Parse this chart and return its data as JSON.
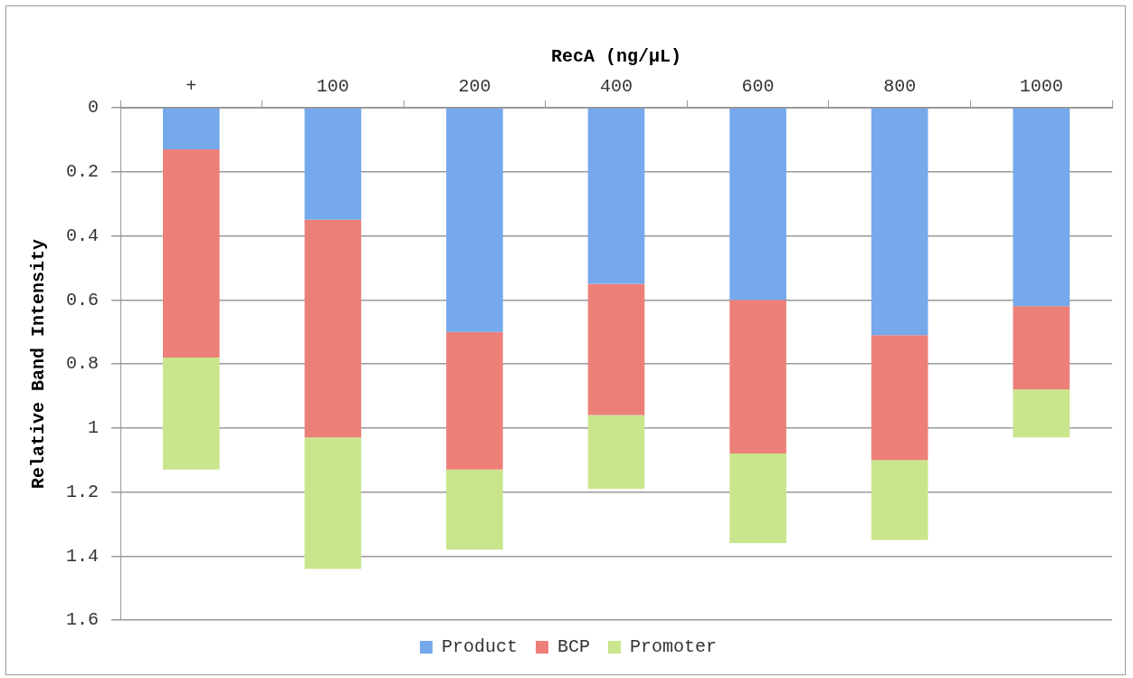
{
  "chart_data": {
    "type": "bar",
    "stacked": true,
    "xlabel": "RecA (ng/µL)",
    "ylabel": "Relative Band Intensity",
    "categories": [
      "+",
      "100",
      "200",
      "400",
      "600",
      "800",
      "1000"
    ],
    "series": [
      {
        "name": "Product",
        "color": "#76a8ec",
        "values": [
          0.13,
          0.35,
          0.7,
          0.55,
          0.6,
          0.71,
          0.62
        ]
      },
      {
        "name": "BCP",
        "color": "#ec8079",
        "values": [
          0.65,
          0.68,
          0.43,
          0.41,
          0.48,
          0.39,
          0.26
        ]
      },
      {
        "name": "Promoter",
        "color": "#c9e68c",
        "values": [
          0.35,
          0.41,
          0.25,
          0.23,
          0.28,
          0.25,
          0.15
        ]
      }
    ],
    "ylim": [
      1.6,
      0
    ],
    "yticks": [
      0,
      0.2,
      0.4,
      0.6,
      0.8,
      1,
      1.2,
      1.4,
      1.6
    ],
    "grid": "y",
    "legend": "bottom"
  }
}
